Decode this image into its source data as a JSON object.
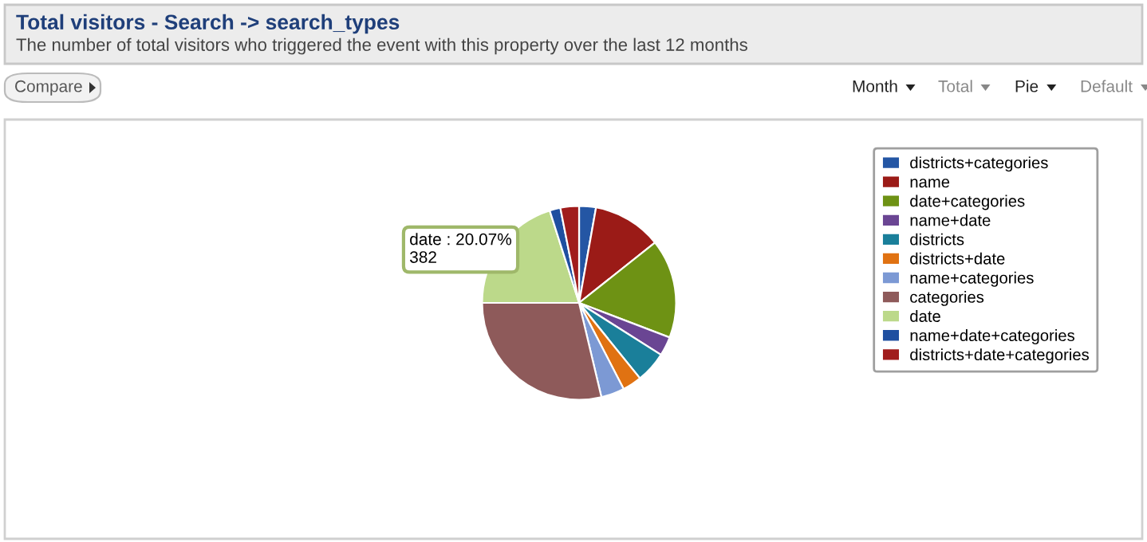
{
  "chart_data": {
    "type": "pie",
    "title": "Total visitors - Search -> search_types",
    "subtitle": "The number of total visitors who triggered the event with this property over the last 12 months",
    "categories": [
      "districts+categories",
      "name",
      "date+categories",
      "name+date",
      "districts",
      "districts+date",
      "name+categories",
      "categories",
      "date",
      "name+date+categories",
      "districts+date+categories"
    ],
    "values": [
      2.8,
      11.5,
      16.5,
      3.2,
      5.2,
      3.2,
      3.9,
      28.73,
      20.07,
      1.8,
      3.1
    ],
    "colors": [
      "#2456a4",
      "#9b1b17",
      "#6e9214",
      "#6a4593",
      "#1a7f9a",
      "#e07212",
      "#7c99d4",
      "#8e5a5a",
      "#bcd98a",
      "#1f4fa0",
      "#a01c1c"
    ],
    "value_labels": [
      null,
      null,
      null,
      null,
      null,
      null,
      null,
      null,
      "date : 20.07%\n382",
      null,
      null
    ],
    "annotations": [
      "Compare",
      "Month",
      "Total",
      "Pie",
      "Default"
    ],
    "legend": "top right"
  }
}
